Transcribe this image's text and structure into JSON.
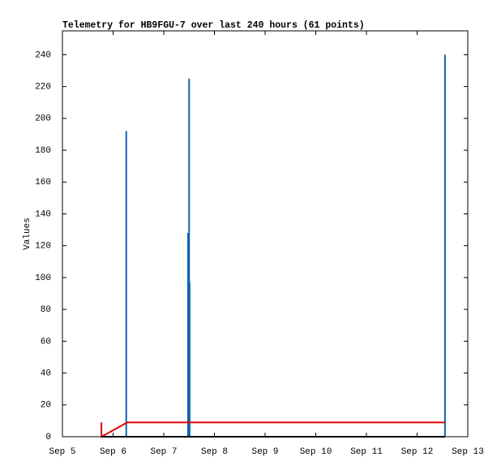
{
  "chart_data": {
    "type": "line",
    "title": "Telemetry for HB9FGU-7 over last 240 hours (61 points)",
    "y_label": "Values",
    "xlim": [
      0,
      8
    ],
    "xticks": [
      {
        "value": 0,
        "label": "Sep 5"
      },
      {
        "value": 1,
        "label": "Sep 6"
      },
      {
        "value": 2,
        "label": "Sep 7"
      },
      {
        "value": 3,
        "label": "Sep 8"
      },
      {
        "value": 4,
        "label": "Sep 9"
      },
      {
        "value": 5,
        "label": "Sep 10"
      },
      {
        "value": 6,
        "label": "Sep 11"
      },
      {
        "value": 7,
        "label": "Sep 12"
      },
      {
        "value": 8,
        "label": "Sep 13"
      }
    ],
    "ylim": [
      0,
      255
    ],
    "yticks": [
      0,
      20,
      40,
      60,
      80,
      100,
      120,
      140,
      160,
      180,
      200,
      220,
      240
    ],
    "series": [
      {
        "style": "impulses",
        "color": "#0f64b0",
        "x": [
          1.26,
          2.48,
          2.5,
          2.51,
          7.55
        ],
        "values": [
          192,
          128,
          225,
          97,
          240
        ]
      },
      {
        "style": "lines",
        "color": "#e00000",
        "x": [
          0.77,
          0.77,
          1.28,
          7.55
        ],
        "values": [
          9,
          0,
          9,
          9
        ]
      },
      {
        "style": "lines",
        "color": "#000000",
        "x": [
          0.77,
          7.55
        ],
        "values": [
          0,
          0
        ]
      }
    ]
  }
}
